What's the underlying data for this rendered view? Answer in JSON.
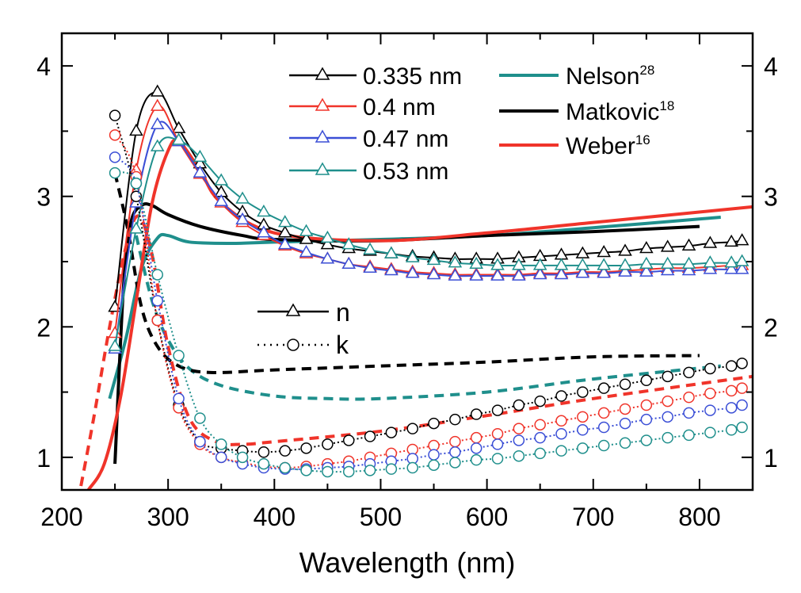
{
  "chart_data": {
    "type": "line",
    "xlabel": "Wavelength (nm)",
    "ylabel": "",
    "xlim": [
      200,
      850
    ],
    "ylim": [
      0.75,
      4.25
    ],
    "xticks": [
      200,
      300,
      400,
      500,
      600,
      700,
      800
    ],
    "yticks": [
      1,
      2,
      3,
      4
    ],
    "grid": false,
    "colors": {
      "black": "#000000",
      "red": "#f0342a",
      "blue": "#3b4fd6",
      "teal": "#1f8f8c"
    },
    "legend_thickness": [
      {
        "label": "0.335 nm",
        "color": "#000000"
      },
      {
        "label": "0.4 nm",
        "color": "#f0342a"
      },
      {
        "label": "0.47 nm",
        "color": "#3b4fd6"
      },
      {
        "label": "0.53 nm",
        "color": "#1f8f8c"
      }
    ],
    "legend_refs": [
      {
        "label": "Nelson",
        "sup": "28",
        "color": "#1f8f8c"
      },
      {
        "label": "Matkovic",
        "sup": "18",
        "color": "#000000"
      },
      {
        "label": "Weber",
        "sup": "16",
        "color": "#f0342a"
      }
    ],
    "legend_quantity": [
      {
        "label": "n",
        "style": "solid-triangle"
      },
      {
        "label": "k",
        "style": "dotted-circle"
      }
    ],
    "series": [
      {
        "name": "0.335 nm",
        "quantity": "n",
        "color": "#000000",
        "marker": "triangle",
        "dash": "solid",
        "x": [
          250,
          270,
          290,
          310,
          330,
          350,
          370,
          390,
          410,
          430,
          450,
          470,
          490,
          510,
          530,
          550,
          570,
          590,
          610,
          630,
          650,
          670,
          690,
          710,
          730,
          750,
          770,
          790,
          810,
          830,
          840
        ],
        "y": [
          2.15,
          3.5,
          3.8,
          3.52,
          3.25,
          3.03,
          2.88,
          2.78,
          2.72,
          2.67,
          2.63,
          2.6,
          2.58,
          2.56,
          2.54,
          2.53,
          2.52,
          2.52,
          2.52,
          2.53,
          2.54,
          2.55,
          2.56,
          2.57,
          2.58,
          2.6,
          2.61,
          2.62,
          2.64,
          2.65,
          2.66
        ]
      },
      {
        "name": "0.4 nm",
        "quantity": "n",
        "color": "#f0342a",
        "marker": "triangle",
        "dash": "solid",
        "x": [
          250,
          270,
          290,
          310,
          330,
          350,
          370,
          390,
          410,
          430,
          450,
          470,
          490,
          510,
          530,
          550,
          570,
          590,
          610,
          630,
          650,
          670,
          690,
          710,
          730,
          750,
          770,
          790,
          810,
          830,
          840
        ],
        "y": [
          1.95,
          3.2,
          3.69,
          3.42,
          3.17,
          2.95,
          2.8,
          2.7,
          2.62,
          2.56,
          2.52,
          2.48,
          2.46,
          2.44,
          2.42,
          2.41,
          2.4,
          2.4,
          2.4,
          2.4,
          2.41,
          2.41,
          2.42,
          2.42,
          2.43,
          2.44,
          2.45,
          2.45,
          2.46,
          2.47,
          2.47
        ]
      },
      {
        "name": "0.47 nm",
        "quantity": "n",
        "color": "#3b4fd6",
        "marker": "triangle",
        "dash": "solid",
        "x": [
          250,
          270,
          290,
          310,
          330,
          350,
          370,
          390,
          410,
          430,
          450,
          470,
          490,
          510,
          530,
          550,
          570,
          590,
          610,
          630,
          650,
          670,
          690,
          710,
          730,
          750,
          770,
          790,
          810,
          830,
          840
        ],
        "y": [
          1.83,
          2.95,
          3.55,
          3.42,
          3.18,
          2.96,
          2.82,
          2.72,
          2.63,
          2.57,
          2.52,
          2.48,
          2.45,
          2.43,
          2.41,
          2.4,
          2.39,
          2.39,
          2.39,
          2.39,
          2.4,
          2.4,
          2.41,
          2.41,
          2.42,
          2.42,
          2.43,
          2.43,
          2.44,
          2.44,
          2.44
        ]
      },
      {
        "name": "0.53 nm",
        "quantity": "n",
        "color": "#1f8f8c",
        "marker": "triangle",
        "dash": "solid",
        "x": [
          250,
          270,
          290,
          310,
          330,
          350,
          370,
          390,
          410,
          430,
          450,
          470,
          490,
          510,
          530,
          550,
          570,
          590,
          610,
          630,
          650,
          670,
          690,
          710,
          730,
          750,
          770,
          790,
          810,
          830,
          840
        ],
        "y": [
          1.85,
          2.75,
          3.38,
          3.43,
          3.3,
          3.12,
          2.98,
          2.88,
          2.8,
          2.73,
          2.68,
          2.63,
          2.59,
          2.56,
          2.53,
          2.51,
          2.49,
          2.48,
          2.47,
          2.47,
          2.47,
          2.47,
          2.47,
          2.47,
          2.47,
          2.48,
          2.48,
          2.48,
          2.49,
          2.49,
          2.5
        ]
      },
      {
        "name": "0.335 nm",
        "quantity": "k",
        "color": "#000000",
        "marker": "circle",
        "dash": "dotted",
        "x": [
          250,
          270,
          290,
          310,
          330,
          350,
          370,
          390,
          410,
          430,
          450,
          470,
          490,
          510,
          530,
          550,
          570,
          590,
          610,
          630,
          650,
          670,
          690,
          710,
          730,
          750,
          770,
          790,
          810,
          830,
          840
        ],
        "y": [
          3.62,
          3.0,
          2.05,
          1.4,
          1.12,
          1.07,
          1.05,
          1.04,
          1.05,
          1.07,
          1.1,
          1.13,
          1.16,
          1.19,
          1.22,
          1.26,
          1.29,
          1.33,
          1.36,
          1.4,
          1.43,
          1.47,
          1.5,
          1.53,
          1.56,
          1.59,
          1.62,
          1.65,
          1.68,
          1.7,
          1.72
        ]
      },
      {
        "name": "0.4 nm",
        "quantity": "k",
        "color": "#f0342a",
        "marker": "circle",
        "dash": "dotted",
        "x": [
          250,
          270,
          290,
          310,
          330,
          350,
          370,
          390,
          410,
          430,
          450,
          470,
          490,
          510,
          530,
          550,
          570,
          590,
          610,
          630,
          650,
          670,
          690,
          710,
          730,
          750,
          770,
          790,
          810,
          830,
          840
        ],
        "y": [
          3.47,
          3.15,
          2.05,
          1.38,
          1.1,
          1.0,
          0.96,
          0.93,
          0.92,
          0.93,
          0.95,
          0.97,
          1.0,
          1.03,
          1.06,
          1.09,
          1.12,
          1.15,
          1.18,
          1.22,
          1.25,
          1.28,
          1.31,
          1.34,
          1.37,
          1.4,
          1.43,
          1.46,
          1.49,
          1.51,
          1.53
        ]
      },
      {
        "name": "0.47 nm",
        "quantity": "k",
        "color": "#3b4fd6",
        "marker": "circle",
        "dash": "dotted",
        "x": [
          250,
          270,
          290,
          310,
          330,
          350,
          370,
          390,
          410,
          430,
          450,
          470,
          490,
          510,
          530,
          550,
          570,
          590,
          610,
          630,
          650,
          670,
          690,
          710,
          730,
          750,
          770,
          790,
          810,
          830,
          840
        ],
        "y": [
          3.3,
          3.1,
          2.2,
          1.45,
          1.12,
          1.0,
          0.95,
          0.92,
          0.91,
          0.91,
          0.92,
          0.93,
          0.95,
          0.97,
          0.99,
          1.02,
          1.04,
          1.07,
          1.1,
          1.13,
          1.15,
          1.18,
          1.21,
          1.23,
          1.26,
          1.29,
          1.31,
          1.34,
          1.36,
          1.38,
          1.4
        ]
      },
      {
        "name": "0.53 nm",
        "quantity": "k",
        "color": "#1f8f8c",
        "marker": "circle",
        "dash": "dotted",
        "x": [
          250,
          270,
          290,
          310,
          330,
          350,
          370,
          390,
          410,
          430,
          450,
          470,
          490,
          510,
          530,
          550,
          570,
          590,
          610,
          630,
          650,
          670,
          690,
          710,
          730,
          750,
          770,
          790,
          810,
          830,
          840
        ],
        "y": [
          3.18,
          3.1,
          2.4,
          1.78,
          1.3,
          1.1,
          1.0,
          0.95,
          0.92,
          0.9,
          0.89,
          0.89,
          0.9,
          0.91,
          0.92,
          0.94,
          0.96,
          0.98,
          0.99,
          1.01,
          1.03,
          1.05,
          1.07,
          1.09,
          1.11,
          1.13,
          1.15,
          1.17,
          1.19,
          1.21,
          1.23
        ]
      },
      {
        "name": "Nelson",
        "quantity": "n",
        "color": "#1f8f8c",
        "marker": "none",
        "dash": "solid",
        "x": [
          245,
          260,
          275,
          290,
          300,
          320,
          360,
          400,
          500,
          600,
          700,
          820
        ],
        "y": [
          1.45,
          1.9,
          2.45,
          2.68,
          2.7,
          2.65,
          2.64,
          2.65,
          2.67,
          2.7,
          2.76,
          2.84
        ]
      },
      {
        "name": "Nelson",
        "quantity": "k",
        "color": "#1f8f8c",
        "marker": "none",
        "dash": "dashed",
        "x": [
          270,
          285,
          300,
          320,
          350,
          400,
          450,
          500,
          600,
          700,
          820
        ],
        "y": [
          2.7,
          2.2,
          1.9,
          1.68,
          1.55,
          1.47,
          1.45,
          1.45,
          1.5,
          1.6,
          1.7
        ]
      },
      {
        "name": "Matkovic",
        "quantity": "n",
        "color": "#000000",
        "marker": "none",
        "dash": "solid",
        "x": [
          250,
          258,
          265,
          275,
          285,
          300,
          330,
          370,
          400,
          500,
          600,
          700,
          800
        ],
        "y": [
          0.95,
          2.3,
          2.8,
          2.93,
          2.93,
          2.86,
          2.77,
          2.7,
          2.67,
          2.66,
          2.7,
          2.73,
          2.77
        ]
      },
      {
        "name": "Matkovic",
        "quantity": "k",
        "color": "#000000",
        "marker": "none",
        "dash": "dashed",
        "x": [
          250,
          262,
          275,
          290,
          310,
          340,
          400,
          500,
          600,
          700,
          800
        ],
        "y": [
          3.18,
          2.75,
          2.15,
          1.85,
          1.7,
          1.65,
          1.67,
          1.7,
          1.73,
          1.77,
          1.78
        ]
      },
      {
        "name": "Weber",
        "quantity": "n",
        "color": "#f0342a",
        "marker": "none",
        "dash": "solid",
        "x": [
          225,
          240,
          255,
          270,
          285,
          300,
          310,
          330,
          350,
          400,
          500,
          600,
          700,
          850
        ],
        "y": [
          0.75,
          0.95,
          1.45,
          2.2,
          2.95,
          3.35,
          3.42,
          3.2,
          2.95,
          2.72,
          2.66,
          2.72,
          2.8,
          2.92
        ]
      },
      {
        "name": "Weber",
        "quantity": "k",
        "color": "#f0342a",
        "marker": "none",
        "dash": "dashed",
        "x": [
          218,
          230,
          245,
          260,
          272,
          285,
          300,
          320,
          345,
          370,
          400,
          500,
          600,
          700,
          850
        ],
        "y": [
          0.78,
          1.3,
          2.0,
          2.6,
          2.85,
          2.55,
          1.85,
          1.3,
          1.12,
          1.1,
          1.12,
          1.2,
          1.32,
          1.45,
          1.62
        ]
      }
    ]
  }
}
